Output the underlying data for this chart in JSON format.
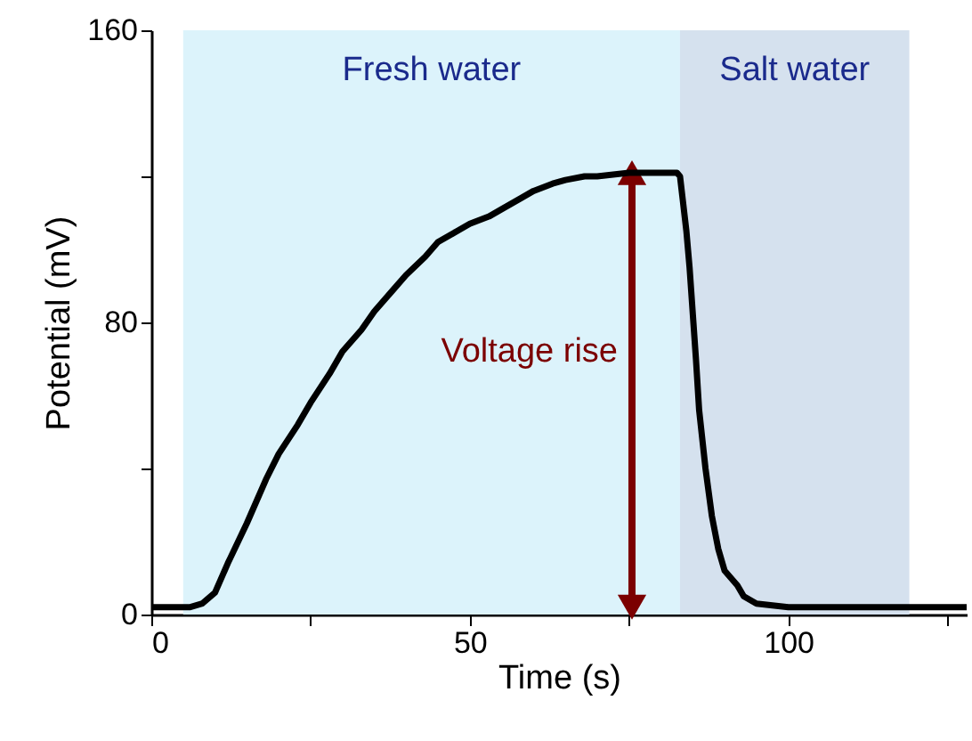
{
  "chart_data": {
    "type": "line",
    "xlabel": "Time (s)",
    "ylabel": "Potential (mV)",
    "x": [
      0,
      3,
      6,
      8,
      10,
      12,
      15,
      18,
      20,
      23,
      25,
      28,
      30,
      33,
      35,
      38,
      40,
      43,
      45,
      48,
      50,
      53,
      55,
      58,
      60,
      63,
      65,
      68,
      70,
      75,
      80,
      82.5,
      83,
      84,
      84.5,
      85.5,
      86,
      87,
      88,
      89,
      90,
      92,
      93,
      95,
      100,
      110,
      120,
      128
    ],
    "series": [
      {
        "color": "#000000",
        "values": [
          2,
          2,
          2,
          3,
          6,
          14,
          25,
          37,
          44,
          52,
          58,
          66,
          72,
          78,
          83,
          89,
          93,
          98,
          102,
          105,
          107,
          109,
          111,
          114,
          116,
          118,
          119,
          120,
          120,
          121,
          121,
          121,
          120,
          105,
          95,
          70,
          56,
          40,
          27,
          18,
          12,
          8,
          5,
          3,
          2,
          2,
          2,
          2
        ]
      }
    ],
    "xlim": [
      0,
      128
    ],
    "xticks": [
      0,
      {
        "value": 25,
        "label": null
      },
      50,
      {
        "value": 75,
        "label": null
      },
      100,
      {
        "value": 125,
        "label": null
      }
    ],
    "ylim": [
      0,
      160
    ],
    "yticks": [
      0,
      {
        "value": 40,
        "label": null
      },
      80,
      {
        "value": 120,
        "label": null
      },
      160
    ],
    "bands": [
      {
        "axis": "x",
        "from": 5,
        "to": 83,
        "label": "Fresh water",
        "color": "#dcf3fb"
      },
      {
        "axis": "x",
        "from": 83,
        "to": 119,
        "label": "Salt water",
        "color": "#d5e1ee"
      }
    ],
    "annotations": [
      "Voltage rise"
    ],
    "grid": false,
    "line_style": "solid",
    "marker": "none"
  }
}
